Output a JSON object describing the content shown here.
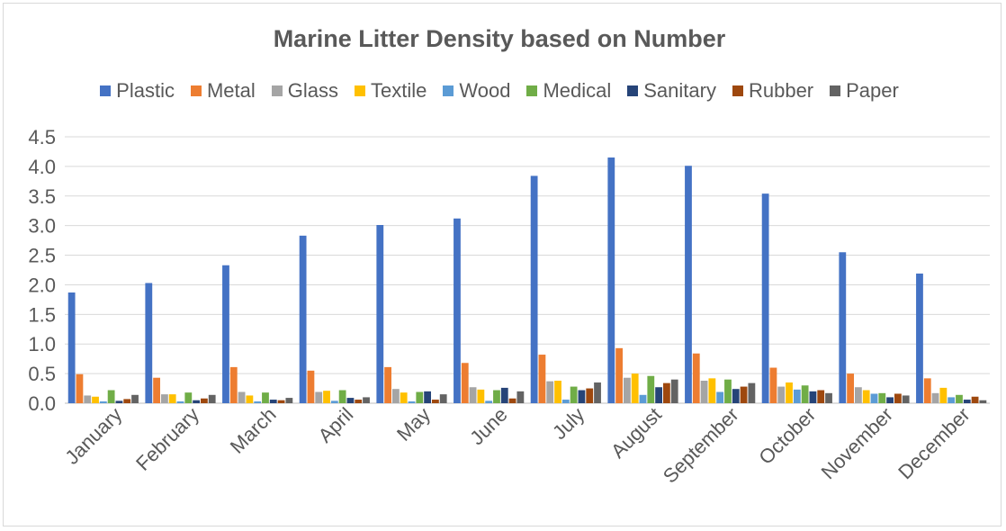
{
  "chart_data": {
    "type": "bar",
    "title": "Marine Litter Density based on Number",
    "xlabel": "",
    "ylabel": "",
    "ylim": [
      0,
      4.5
    ],
    "yticks": [
      "0.0",
      "0.5",
      "1.0",
      "1.5",
      "2.0",
      "2.5",
      "3.0",
      "3.5",
      "4.0",
      "4.5"
    ],
    "grid": true,
    "legend_position": "top",
    "categories": [
      "January",
      "February",
      "March",
      "April",
      "May",
      "June",
      "July",
      "August",
      "September",
      "October",
      "November",
      "December"
    ],
    "series": [
      {
        "name": "Plastic",
        "color": "#4472C4",
        "values": [
          1.87,
          2.03,
          2.33,
          2.83,
          3.01,
          3.12,
          3.84,
          4.15,
          4.01,
          3.54,
          2.55,
          2.19
        ]
      },
      {
        "name": "Metal",
        "color": "#ED7D31",
        "values": [
          0.49,
          0.43,
          0.61,
          0.55,
          0.61,
          0.68,
          0.82,
          0.93,
          0.84,
          0.6,
          0.5,
          0.42
        ]
      },
      {
        "name": "Glass",
        "color": "#A5A5A5",
        "values": [
          0.13,
          0.15,
          0.19,
          0.19,
          0.24,
          0.27,
          0.37,
          0.43,
          0.38,
          0.28,
          0.27,
          0.17
        ]
      },
      {
        "name": "Textile",
        "color": "#FFC000",
        "values": [
          0.11,
          0.15,
          0.13,
          0.21,
          0.18,
          0.23,
          0.38,
          0.5,
          0.42,
          0.35,
          0.22,
          0.26
        ]
      },
      {
        "name": "Wood",
        "color": "#5B9BD5",
        "values": [
          0.03,
          0.03,
          0.03,
          0.04,
          0.03,
          0.04,
          0.06,
          0.14,
          0.19,
          0.23,
          0.16,
          0.1
        ]
      },
      {
        "name": "Medical",
        "color": "#70AD47",
        "values": [
          0.22,
          0.18,
          0.18,
          0.22,
          0.19,
          0.22,
          0.28,
          0.46,
          0.4,
          0.3,
          0.17,
          0.14
        ]
      },
      {
        "name": "Sanitary",
        "color": "#264478",
        "values": [
          0.04,
          0.05,
          0.06,
          0.09,
          0.2,
          0.26,
          0.22,
          0.27,
          0.24,
          0.2,
          0.1,
          0.06
        ]
      },
      {
        "name": "Rubber",
        "color": "#9E480E",
        "values": [
          0.07,
          0.08,
          0.05,
          0.06,
          0.06,
          0.08,
          0.25,
          0.34,
          0.28,
          0.22,
          0.16,
          0.11
        ]
      },
      {
        "name": "Paper",
        "color": "#636363",
        "values": [
          0.14,
          0.14,
          0.09,
          0.1,
          0.15,
          0.2,
          0.35,
          0.4,
          0.34,
          0.17,
          0.13,
          0.05
        ]
      }
    ]
  }
}
